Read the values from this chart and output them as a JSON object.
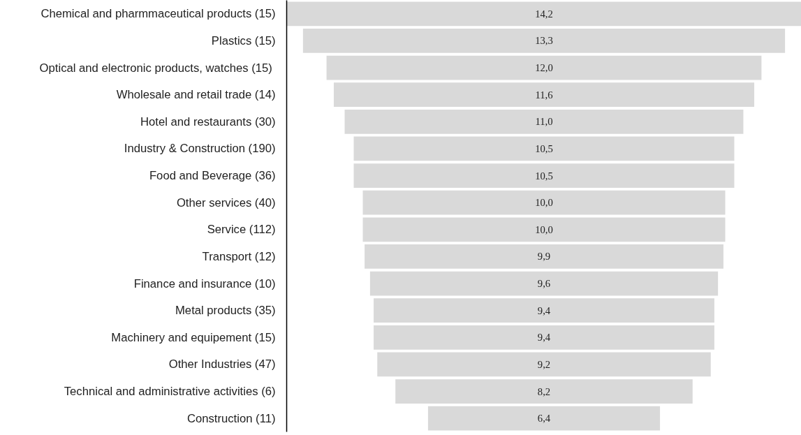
{
  "chart_data": {
    "type": "other",
    "categories": [
      "Chemical and pharmmaceutical products (15)",
      "Plastics (15)",
      "Optical  and electronic products, watches (15)",
      "Wholesale and retail trade (14)",
      "Hotel and restaurants (30)",
      "Industry & Construction (190)",
      "Food and Beverage (36)",
      "Other services (40)",
      "Service (112)",
      "Transport (12)",
      "Finance and insurance (10)",
      "Metal products (35)",
      "Machinery and equipement (15)",
      "Other Industries (47)",
      "Technical and administrative activities (6)",
      "Construction (11)"
    ],
    "values": [
      14.2,
      13.3,
      12.0,
      11.6,
      11.0,
      10.5,
      10.5,
      10.0,
      10.0,
      9.9,
      9.6,
      9.4,
      9.4,
      9.2,
      8.2,
      6.4
    ],
    "value_labels": [
      "14,2",
      "13,3",
      "12,0",
      "11,6",
      "11,0",
      "10,5",
      "10,5",
      "10,0",
      "10,0",
      "9,9",
      "9,6",
      "9,4",
      "9,4",
      "9,2",
      "8,2",
      "6,4"
    ],
    "color": "#d9d9d9"
  }
}
